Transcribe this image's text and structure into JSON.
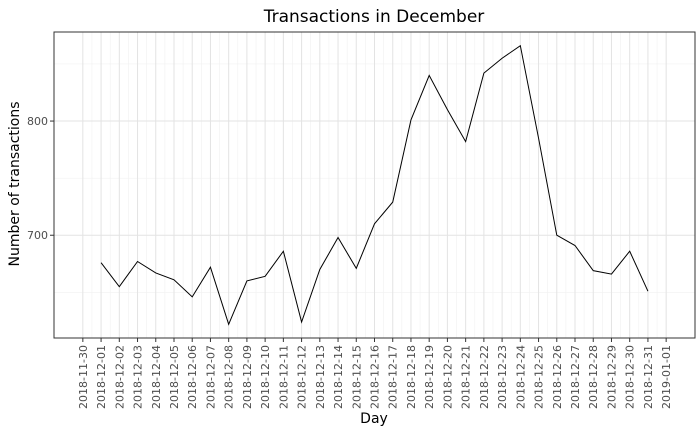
{
  "chart_data": {
    "type": "line",
    "title": "Transactions in December",
    "xlabel": "Day",
    "ylabel": "Number of transactions",
    "x": [
      "2018-12-01",
      "2018-12-02",
      "2018-12-03",
      "2018-12-04",
      "2018-12-05",
      "2018-12-06",
      "2018-12-07",
      "2018-12-08",
      "2018-12-09",
      "2018-12-10",
      "2018-12-11",
      "2018-12-12",
      "2018-12-13",
      "2018-12-14",
      "2018-12-15",
      "2018-12-16",
      "2018-12-17",
      "2018-12-18",
      "2018-12-19",
      "2018-12-20",
      "2018-12-21",
      "2018-12-22",
      "2018-12-23",
      "2018-12-24",
      "2018-12-25",
      "2018-12-26",
      "2018-12-27",
      "2018-12-28",
      "2018-12-29",
      "2018-12-30",
      "2018-12-31"
    ],
    "x_ticks": [
      "2018-11-30",
      "2018-12-01",
      "2018-12-02",
      "2018-12-03",
      "2018-12-04",
      "2018-12-05",
      "2018-12-06",
      "2018-12-07",
      "2018-12-08",
      "2018-12-09",
      "2018-12-10",
      "2018-12-11",
      "2018-12-12",
      "2018-12-13",
      "2018-12-14",
      "2018-12-15",
      "2018-12-16",
      "2018-12-17",
      "2018-12-18",
      "2018-12-19",
      "2018-12-20",
      "2018-12-21",
      "2018-12-22",
      "2018-12-23",
      "2018-12-24",
      "2018-12-25",
      "2018-12-26",
      "2018-12-27",
      "2018-12-28",
      "2018-12-29",
      "2018-12-30",
      "2018-12-31",
      "2019-01-01"
    ],
    "xlim": [
      "2018-11-30",
      "2019-01-01"
    ],
    "series": [
      {
        "values": [
          676,
          655,
          677,
          667,
          661,
          646,
          672,
          622,
          660,
          664,
          686,
          624,
          670,
          698,
          671,
          710,
          729,
          801,
          840,
          810,
          782,
          842,
          855,
          866,
          785,
          700,
          691,
          669,
          666,
          686,
          651
        ]
      }
    ],
    "y_ticks": [
      700,
      800
    ],
    "ylim": [
      610,
      878
    ],
    "grid": true,
    "colors": {
      "line": "#000000",
      "grid_major": "#e3e3e3",
      "grid_minor": "#f1f1f1",
      "panel_border": "#333333",
      "text": "#000000",
      "tick_text": "#4d4d4d"
    }
  }
}
